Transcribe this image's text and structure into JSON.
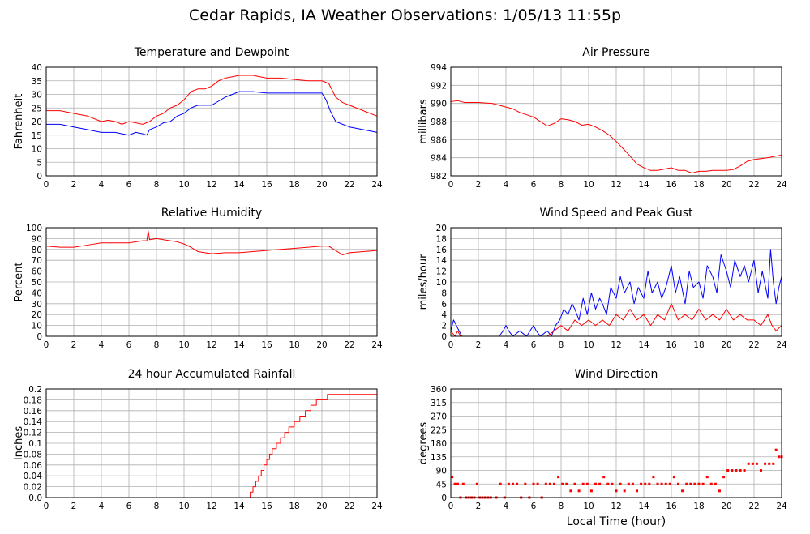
{
  "title": "Cedar Rapids, IA Weather Observations: 1/05/13 11:55p",
  "colors": {
    "red": "#ff0000",
    "blue": "#0000ff",
    "grid": "#b0b0b0",
    "frame": "#000000"
  },
  "chart_data": [
    {
      "id": "temp",
      "type": "line",
      "title": "Temperature and Dewpoint",
      "xlabel": "",
      "ylabel": "Fahrenheit",
      "xlim": [
        0,
        24
      ],
      "ylim": [
        0,
        40
      ],
      "x_ticks": [
        0,
        2,
        4,
        6,
        8,
        10,
        12,
        14,
        16,
        18,
        20,
        22,
        24
      ],
      "y_ticks": [
        0,
        5,
        10,
        15,
        20,
        25,
        30,
        35,
        40
      ],
      "y_tick_labels": [
        "0",
        "5",
        "10",
        "15",
        "20",
        "25",
        "30",
        "35",
        "40"
      ],
      "grid": true,
      "series": [
        {
          "color": "#ff0000",
          "x": [
            0,
            1,
            2,
            3,
            4,
            4.5,
            5,
            5.5,
            6,
            6.5,
            7,
            7.5,
            8,
            8.5,
            9,
            9.5,
            10,
            10.5,
            11,
            11.5,
            12,
            12.5,
            13,
            13.5,
            14,
            14.5,
            15,
            15.5,
            16,
            17,
            18,
            19,
            20,
            20.5,
            21,
            21.5,
            22,
            23,
            24
          ],
          "y": [
            24,
            24,
            23,
            22,
            20,
            20.5,
            20,
            19,
            20,
            19.5,
            19,
            20,
            22,
            23,
            25,
            26,
            28,
            31,
            32,
            32,
            33,
            35,
            36,
            36.5,
            37,
            37,
            37,
            36.5,
            36,
            36,
            35.5,
            35,
            35,
            34,
            29,
            27,
            26,
            24,
            22
          ]
        },
        {
          "color": "#0000ff",
          "x": [
            0,
            1,
            2,
            3,
            4,
            4.5,
            5,
            5.5,
            6,
            6.5,
            7,
            7.3,
            7.5,
            8,
            8.5,
            9,
            9.5,
            10,
            10.5,
            11,
            11.5,
            12,
            12.5,
            13,
            13.5,
            14,
            15,
            16,
            17,
            18,
            19,
            20,
            20.3,
            20.6,
            21,
            21.5,
            22,
            23,
            24
          ],
          "y": [
            19,
            19,
            18,
            17,
            16,
            16,
            16,
            15.5,
            15,
            16,
            15.5,
            15,
            17,
            18,
            19.5,
            20,
            22,
            23,
            25,
            26,
            26,
            26,
            27.5,
            29,
            30,
            31,
            31,
            30.5,
            30.5,
            30.5,
            30.5,
            30.5,
            28,
            24,
            20,
            19,
            18,
            17,
            16
          ]
        }
      ]
    },
    {
      "id": "pressure",
      "type": "line",
      "title": "Air Pressure",
      "xlabel": "",
      "ylabel": "millibars",
      "xlim": [
        0,
        24
      ],
      "ylim": [
        982,
        994
      ],
      "x_ticks": [
        0,
        2,
        4,
        6,
        8,
        10,
        12,
        14,
        16,
        18,
        20,
        22,
        24
      ],
      "y_ticks": [
        982,
        984,
        986,
        988,
        990,
        992,
        994
      ],
      "y_tick_labels": [
        "982",
        "984",
        "986",
        "988",
        "990",
        "992",
        "994"
      ],
      "grid": true,
      "series": [
        {
          "color": "#ff0000",
          "x": [
            0,
            0.5,
            1,
            2,
            3,
            4,
            4.5,
            5,
            6,
            6.5,
            7,
            7.5,
            8,
            8.5,
            9,
            9.5,
            10,
            10.5,
            11,
            11.5,
            12,
            12.5,
            13,
            13.5,
            14,
            14.5,
            15,
            16,
            16.5,
            17,
            17.5,
            18,
            18.5,
            19,
            20,
            20.5,
            21,
            21.5,
            22,
            23,
            24
          ],
          "y": [
            990.2,
            990.3,
            990.1,
            990.1,
            990,
            989.6,
            989.4,
            989,
            988.5,
            988,
            987.5,
            987.8,
            988.3,
            988.2,
            988,
            987.6,
            987.7,
            987.4,
            987,
            986.5,
            985.8,
            985,
            984.2,
            983.3,
            982.9,
            982.6,
            982.6,
            982.9,
            982.6,
            982.6,
            982.3,
            982.5,
            982.5,
            982.6,
            982.6,
            982.7,
            983.1,
            983.6,
            983.8,
            984,
            984.3
          ]
        }
      ]
    },
    {
      "id": "humidity",
      "type": "line",
      "title": "Relative Humidity",
      "xlabel": "",
      "ylabel": "Percent",
      "xlim": [
        0,
        24
      ],
      "ylim": [
        0,
        100
      ],
      "x_ticks": [
        0,
        2,
        4,
        6,
        8,
        10,
        12,
        14,
        16,
        18,
        20,
        22,
        24
      ],
      "y_ticks": [
        0,
        10,
        20,
        30,
        40,
        50,
        60,
        70,
        80,
        90,
        100
      ],
      "y_tick_labels": [
        "0",
        "10",
        "20",
        "30",
        "40",
        "50",
        "60",
        "70",
        "80",
        "90",
        "100"
      ],
      "grid": true,
      "series": [
        {
          "color": "#ff0000",
          "x": [
            0,
            1,
            2,
            3,
            4,
            5,
            6,
            7,
            7.3,
            7.4,
            7.5,
            8,
            8.5,
            9,
            9.5,
            10,
            10.5,
            11,
            11.5,
            12,
            13,
            14,
            15,
            16,
            17,
            18,
            19,
            20,
            20.5,
            21,
            21.5,
            22,
            23,
            24
          ],
          "y": [
            83,
            82,
            82,
            84,
            86,
            86,
            86,
            88,
            88,
            97,
            89,
            90,
            89,
            88,
            87,
            85,
            82,
            78,
            77,
            76,
            77,
            77,
            78,
            79,
            80,
            81,
            82,
            83,
            83,
            79,
            75,
            77,
            78,
            79
          ]
        }
      ]
    },
    {
      "id": "wind",
      "type": "line",
      "title": "Wind Speed and Peak Gust",
      "xlabel": "",
      "ylabel": "miles/hour",
      "xlim": [
        0,
        24
      ],
      "ylim": [
        0,
        20
      ],
      "x_ticks": [
        0,
        2,
        4,
        6,
        8,
        10,
        12,
        14,
        16,
        18,
        20,
        22,
        24
      ],
      "y_ticks": [
        0,
        2,
        4,
        6,
        8,
        10,
        12,
        14,
        16,
        18,
        20
      ],
      "y_tick_labels": [
        "0",
        "2",
        "4",
        "6",
        "8",
        "10",
        "12",
        "14",
        "16",
        "18",
        "20"
      ],
      "grid": true,
      "series": [
        {
          "color": "#0000ff",
          "x": [
            0,
            0.2,
            0.4,
            0.6,
            0.8,
            1,
            1.5,
            2,
            3,
            3.5,
            3.8,
            4,
            4.2,
            4.5,
            5,
            5.5,
            6,
            6.2,
            6.5,
            7,
            7.3,
            7.6,
            7.9,
            8.2,
            8.5,
            8.8,
            9,
            9.3,
            9.6,
            9.9,
            10.2,
            10.5,
            10.8,
            11,
            11.3,
            11.6,
            12,
            12.3,
            12.6,
            13,
            13.3,
            13.6,
            14,
            14.3,
            14.6,
            15,
            15.3,
            15.6,
            16,
            16.3,
            16.6,
            17,
            17.3,
            17.6,
            18,
            18.3,
            18.6,
            19,
            19.3,
            19.6,
            20,
            20.3,
            20.6,
            21,
            21.3,
            21.6,
            22,
            22.3,
            22.6,
            23,
            23.2,
            23.4,
            23.6,
            23.8,
            24
          ],
          "y": [
            1,
            3,
            2,
            1,
            0,
            0,
            0,
            0,
            0,
            0,
            1,
            2,
            1,
            0,
            1,
            0,
            2,
            1,
            0,
            1,
            0,
            2,
            3,
            5,
            4,
            6,
            5,
            3,
            7,
            4,
            8,
            5,
            7,
            6,
            4,
            9,
            7,
            11,
            8,
            10,
            6,
            9,
            7,
            12,
            8,
            10,
            7,
            9,
            13,
            8,
            11,
            6,
            12,
            9,
            10,
            7,
            13,
            11,
            8,
            15,
            12,
            9,
            14,
            11,
            13,
            10,
            14,
            8,
            12,
            7,
            16,
            10,
            6,
            9,
            11
          ]
        },
        {
          "color": "#ff0000",
          "x": [
            0,
            0.3,
            0.5,
            0.7,
            1,
            2,
            3,
            4,
            5,
            6,
            7,
            7.5,
            8,
            8.5,
            9,
            9.5,
            10,
            10.5,
            11,
            11.5,
            12,
            12.5,
            13,
            13.5,
            14,
            14.5,
            15,
            15.5,
            16,
            16.5,
            17,
            17.5,
            18,
            18.5,
            19,
            19.5,
            20,
            20.5,
            21,
            21.5,
            22,
            22.5,
            23,
            23.3,
            23.6,
            24
          ],
          "y": [
            1,
            0,
            1,
            0,
            0,
            0,
            0,
            0,
            0,
            0,
            0,
            1,
            2,
            1,
            3,
            2,
            3,
            2,
            3,
            2,
            4,
            3,
            5,
            3,
            4,
            2,
            4,
            3,
            6,
            3,
            4,
            3,
            5,
            3,
            4,
            3,
            5,
            3,
            4,
            3,
            3,
            2,
            4,
            2,
            1,
            2
          ]
        }
      ]
    },
    {
      "id": "rain",
      "type": "line",
      "title": "24 hour Accumulated Rainfall",
      "xlabel": "",
      "ylabel": "Inches",
      "xlim": [
        0,
        24
      ],
      "ylim": [
        0,
        0.2
      ],
      "x_ticks": [
        0,
        2,
        4,
        6,
        8,
        10,
        12,
        14,
        16,
        18,
        20,
        22,
        24
      ],
      "y_ticks": [
        0,
        0.02,
        0.04,
        0.06,
        0.08,
        0.1,
        0.12,
        0.14,
        0.16,
        0.18,
        0.2
      ],
      "y_tick_labels": [
        "0.0",
        "0.02",
        "0.04",
        "0.06",
        "0.08",
        "0.1",
        "0.12",
        "0.14",
        "0.16",
        "0.18",
        "0.2"
      ],
      "grid": true,
      "series": [
        {
          "color": "#ff0000",
          "step": true,
          "x": [
            0,
            14.6,
            14.8,
            15,
            15.2,
            15.4,
            15.6,
            15.8,
            16,
            16.2,
            16.4,
            16.7,
            17,
            17.3,
            17.6,
            18,
            18.4,
            18.8,
            19.2,
            19.6,
            20,
            20.4,
            24
          ],
          "y": [
            0,
            0,
            0.01,
            0.02,
            0.03,
            0.04,
            0.05,
            0.06,
            0.07,
            0.08,
            0.09,
            0.1,
            0.11,
            0.12,
            0.13,
            0.14,
            0.15,
            0.16,
            0.17,
            0.18,
            0.18,
            0.19,
            0.19
          ]
        }
      ]
    },
    {
      "id": "direction",
      "type": "scatter",
      "title": "Wind Direction",
      "xlabel": "Local Time (hour)",
      "ylabel": "degrees",
      "xlim": [
        0,
        24
      ],
      "ylim": [
        0,
        360
      ],
      "x_ticks": [
        0,
        2,
        4,
        6,
        8,
        10,
        12,
        14,
        16,
        18,
        20,
        22,
        24
      ],
      "y_ticks": [
        0,
        45,
        90,
        135,
        180,
        225,
        270,
        315,
        360
      ],
      "y_tick_labels": [
        "0",
        "45",
        "90",
        "135",
        "180",
        "225",
        "270",
        "315",
        "360"
      ],
      "grid": true,
      "series": [
        {
          "color": "#ff0000",
          "x": [
            0.1,
            0.3,
            0.5,
            0.7,
            0.9,
            1.1,
            1.3,
            1.5,
            1.7,
            1.9,
            2.1,
            2.3,
            2.5,
            2.7,
            2.9,
            3.3,
            3.6,
            3.9,
            4.2,
            4.5,
            4.8,
            5.1,
            5.4,
            5.7,
            6,
            6.3,
            6.6,
            6.9,
            7.2,
            7.5,
            7.8,
            8.1,
            8.4,
            8.7,
            9,
            9.3,
            9.6,
            9.9,
            10.2,
            10.5,
            10.8,
            11.1,
            11.4,
            11.7,
            12,
            12.3,
            12.6,
            12.9,
            13.2,
            13.5,
            13.8,
            14.1,
            14.4,
            14.7,
            15,
            15.3,
            15.6,
            15.9,
            16.2,
            16.5,
            16.8,
            17.1,
            17.4,
            17.7,
            18,
            18.3,
            18.6,
            18.9,
            19.2,
            19.5,
            19.8,
            20.1,
            20.4,
            20.7,
            21,
            21.3,
            21.6,
            21.9,
            22.2,
            22.5,
            22.8,
            23.1,
            23.4,
            23.6,
            23.8,
            24
          ],
          "y": [
            68,
            45,
            45,
            0,
            45,
            0,
            0,
            0,
            0,
            45,
            0,
            0,
            0,
            0,
            0,
            0,
            45,
            0,
            45,
            45,
            45,
            0,
            45,
            0,
            45,
            45,
            0,
            45,
            45,
            45,
            68,
            45,
            45,
            22,
            45,
            22,
            45,
            45,
            22,
            45,
            45,
            68,
            45,
            45,
            22,
            45,
            22,
            45,
            45,
            22,
            45,
            45,
            45,
            68,
            45,
            45,
            45,
            45,
            68,
            45,
            22,
            45,
            45,
            45,
            45,
            45,
            68,
            45,
            45,
            22,
            68,
            90,
            90,
            90,
            90,
            90,
            112,
            112,
            112,
            90,
            112,
            112,
            112,
            158,
            135,
            135
          ]
        }
      ]
    }
  ]
}
